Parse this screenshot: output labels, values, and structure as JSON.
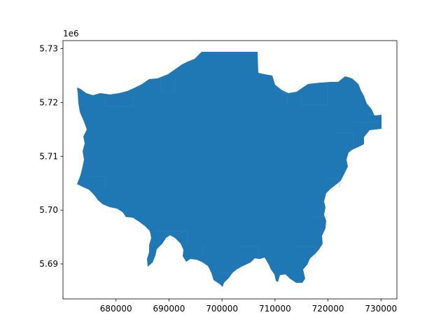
{
  "plot": {
    "offset_label": "1e6",
    "fill_color": "#1f77b4",
    "xlim": [
      670000,
      733000
    ],
    "ylim": [
      5.6835,
      5.7315
    ],
    "x_ticks": [
      {
        "value": 680000,
        "label": "680000"
      },
      {
        "value": 690000,
        "label": "690000"
      },
      {
        "value": 700000,
        "label": "700000"
      },
      {
        "value": 710000,
        "label": "710000"
      },
      {
        "value": 720000,
        "label": "720000"
      },
      {
        "value": 730000,
        "label": "730000"
      }
    ],
    "y_ticks": [
      {
        "value": 5.69,
        "label": "5.69"
      },
      {
        "value": 5.7,
        "label": "5.70"
      },
      {
        "value": 5.71,
        "label": "5.71"
      },
      {
        "value": 5.72,
        "label": "5.72"
      },
      {
        "value": 5.73,
        "label": "5.73"
      }
    ]
  }
}
